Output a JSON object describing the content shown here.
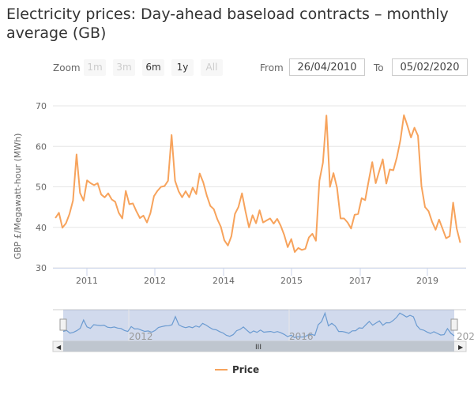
{
  "title": "Electricity prices: Day-ahead baseload contracts – monthly average (GB)",
  "range_selector": {
    "zoom_label": "Zoom",
    "buttons": [
      {
        "label": "1m",
        "enabled": false
      },
      {
        "label": "3m",
        "enabled": false
      },
      {
        "label": "6m",
        "enabled": true
      },
      {
        "label": "1y",
        "enabled": true
      },
      {
        "label": "All",
        "enabled": false
      }
    ],
    "from_label": "From",
    "from_value": "26/04/2010",
    "to_label": "To",
    "to_value": "05/02/2020"
  },
  "chart_data": {
    "type": "line",
    "title": "Electricity prices: Day-ahead baseload contracts – monthly average (GB)",
    "ylabel": "GBP £/Megawatt-hour (MWh)",
    "ylim": [
      30,
      70
    ],
    "yticks": [
      30,
      40,
      50,
      60,
      70
    ],
    "xlim": [
      "2010-04-26",
      "2020-02-05"
    ],
    "xtick_labels": [
      "2011",
      "2012",
      "2014",
      "2015",
      "2017",
      "2019"
    ],
    "grid": true,
    "legend": "bottom",
    "color": "#f7a35c",
    "navigator_color": "#6b9bd1",
    "navigator_labels": [
      "2012",
      "2016",
      "202"
    ],
    "series": [
      {
        "name": "Price",
        "start_month": "2010-05",
        "frequency": "monthly",
        "values": [
          42.3,
          43.6,
          39.9,
          41,
          43.3,
          46.6,
          58,
          48.5,
          46.6,
          51.6,
          50.9,
          50.4,
          50.9,
          48.1,
          47.4,
          48.4,
          46.9,
          46.3,
          43.6,
          42.2,
          49,
          45.7,
          45.9,
          44,
          42.3,
          42.9,
          41.2,
          43.5,
          47.7,
          49,
          50,
          50.2,
          51.5,
          62.8,
          51.5,
          48.9,
          47.4,
          48.9,
          47.4,
          49.8,
          48.2,
          53.3,
          51.1,
          47.9,
          45.3,
          44.5,
          42,
          40.1,
          36.8,
          35.5,
          37.8,
          43.3,
          45,
          48.4,
          44,
          40,
          43,
          41,
          44.2,
          41.2,
          41.7,
          42.2,
          40.9,
          42.1,
          40.4,
          38.1,
          35.1,
          37.1,
          33.9,
          34.9,
          34.4,
          34.7,
          37.5,
          38.4,
          36.7,
          51.5,
          56,
          67.6,
          50,
          53.4,
          49.8,
          42.2,
          42.2,
          41.2,
          39.7,
          43.1,
          43.3,
          47.2,
          46.7,
          51.5,
          56.1,
          50.9,
          53.9,
          56.8,
          50.8,
          54.3,
          54.1,
          57.3,
          61.5,
          67.7,
          65.1,
          62.2,
          64.6,
          62.6,
          50.2,
          45,
          44,
          41.4,
          39.4,
          41.9,
          39.6,
          37.3,
          37.8,
          46.1,
          39.7,
          36.2
        ]
      }
    ]
  }
}
